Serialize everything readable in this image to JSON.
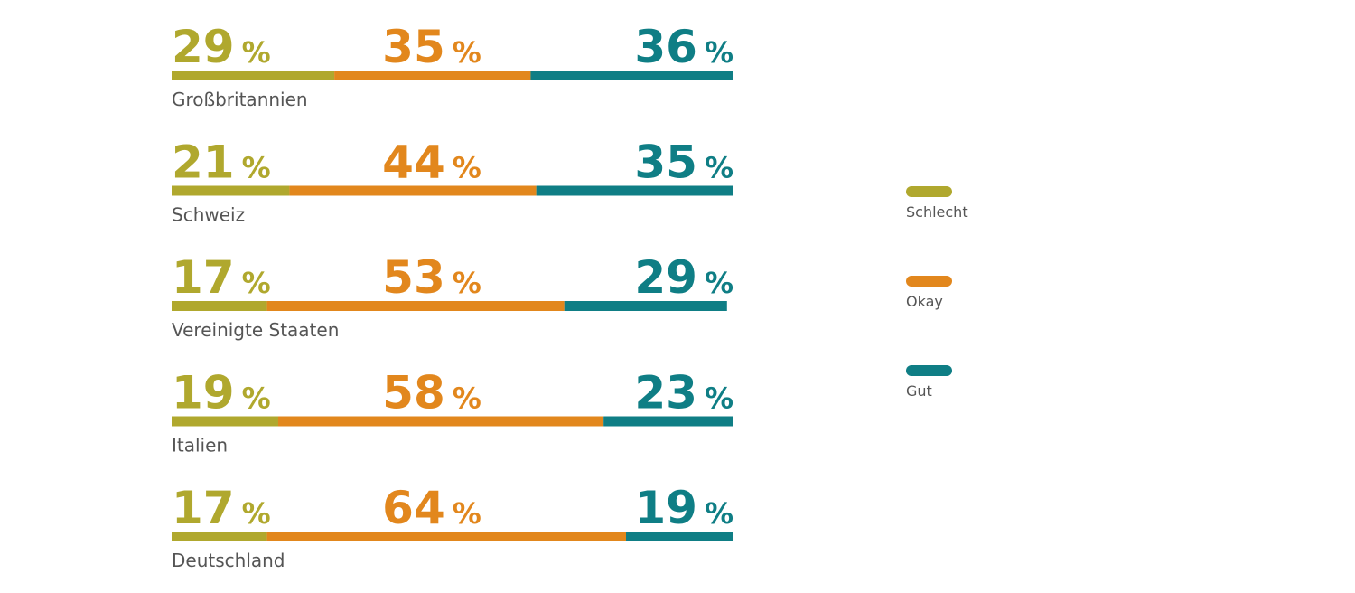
{
  "chart_data": {
    "type": "stacked-bar",
    "categories": [
      "Großbritannien",
      "Schweiz",
      "Vereinigte Staaten",
      "Italien",
      "Deutschland"
    ],
    "unit": "%",
    "xlim": [
      0,
      100
    ],
    "series": [
      {
        "name": "Schlecht",
        "color": "#b0a82e",
        "values": [
          29,
          21,
          17,
          19,
          17
        ]
      },
      {
        "name": "Okay",
        "color": "#e2871d",
        "values": [
          35,
          44,
          53,
          58,
          64
        ]
      },
      {
        "name": "Gut",
        "color": "#0f7e85",
        "values": [
          36,
          35,
          29,
          23,
          19
        ]
      }
    ]
  }
}
